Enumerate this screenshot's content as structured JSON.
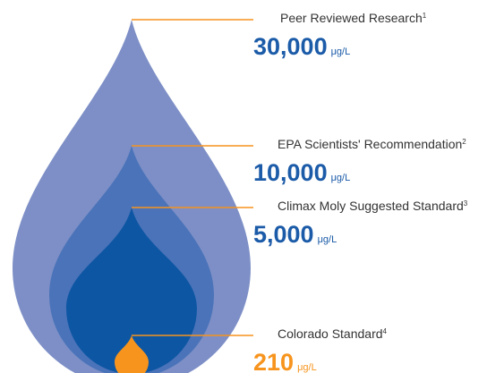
{
  "items": [
    {
      "label": "Peer Reviewed Research",
      "note": "1",
      "value": "30,000",
      "unit": "μg/L"
    },
    {
      "label": "EPA Scientists' Recommendation",
      "note": "2",
      "value": "10,000",
      "unit": "μg/L"
    },
    {
      "label": "Climax Moly Suggested Standard",
      "note": "3",
      "value": "5,000",
      "unit": "μg/L"
    },
    {
      "label": "Colorado Standard",
      "note": "4",
      "value": "210",
      "unit": "μg/L"
    }
  ]
}
